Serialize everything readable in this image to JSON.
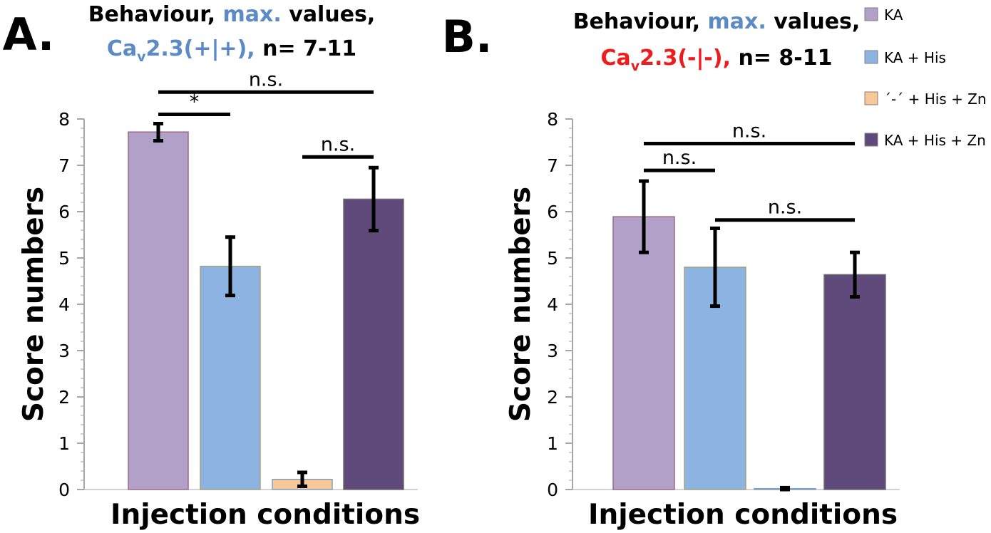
{
  "colors": {
    "ka": "#b1a0c8",
    "ka_his": "#8db3e2",
    "ctrl_his_zn": "#fac896",
    "ka_his_zn": "#604a7b",
    "title_blue": "#5b8ac6",
    "title_red": "#ee1c1c",
    "text": "#000000",
    "axis": "#a6a6a6"
  },
  "legend": {
    "items": [
      {
        "label": "KA",
        "color_key": "ka"
      },
      {
        "label": "KA + His",
        "color_key": "ka_his"
      },
      {
        "label": "´-´ + His + Zn",
        "color_key": "ctrl_his_zn"
      },
      {
        "label": "KA + His + Zn",
        "color_key": "ka_his_zn"
      }
    ]
  },
  "chart_data": [
    {
      "type": "bar",
      "panel_label": "A.",
      "title_parts": {
        "line1_a": "Behaviour, ",
        "line1_b": "max.",
        "line1_c": " values,",
        "line2_a": "Ca",
        "line2_sub": "v",
        "line2_b": "2.3(+|+),",
        "line2_c": " n= 7-11"
      },
      "genotype_color": "title_blue",
      "xlabel": "Injection conditions",
      "ylabel": "Score numbers",
      "ylim": [
        0,
        8
      ],
      "yticks": [
        "0",
        "1",
        "2",
        "3",
        "4",
        "5",
        "6",
        "7",
        "8"
      ],
      "series": [
        {
          "name": "KA",
          "value": 7.72,
          "err_low": 7.53,
          "err_high": 7.9,
          "color_key": "ka"
        },
        {
          "name": "KA + His",
          "value": 4.82,
          "err_low": 4.19,
          "err_high": 5.45,
          "color_key": "ka_his"
        },
        {
          "name": "´-´ + His + Zn",
          "value": 0.22,
          "err_low": 0.07,
          "err_high": 0.37,
          "color_key": "ctrl_his_zn"
        },
        {
          "name": "KA + His + Zn",
          "value": 6.27,
          "err_low": 5.59,
          "err_high": 6.95,
          "color_key": "ka_his_zn"
        }
      ],
      "significance": [
        {
          "from": 1,
          "to": 2,
          "label": "*",
          "y": 8.1
        },
        {
          "from": 1,
          "to": 4,
          "label": "n.s.",
          "y": 8.58
        },
        {
          "from": 3,
          "to": 4,
          "label": "n.s.",
          "y": 7.18
        }
      ]
    },
    {
      "type": "bar",
      "panel_label": "B.",
      "title_parts": {
        "line1_a": "Behaviour, ",
        "line1_b": "max.",
        "line1_c": " values,",
        "line2_a": "Ca",
        "line2_sub": "v",
        "line2_b": "2.3(-|-),",
        "line2_c": " n= 8-11"
      },
      "genotype_color": "title_red",
      "xlabel": "Injection conditions",
      "ylabel": "Score numbers",
      "ylim": [
        0,
        8
      ],
      "yticks": [
        "0",
        "1",
        "2",
        "3",
        "4",
        "5",
        "6",
        "7",
        "8"
      ],
      "series": [
        {
          "name": "KA",
          "value": 5.89,
          "err_low": 5.12,
          "err_high": 6.66,
          "color_key": "ka"
        },
        {
          "name": "KA + His",
          "value": 4.8,
          "err_low": 3.96,
          "err_high": 5.64,
          "color_key": "ka_his"
        },
        {
          "name": "´-´ + His + Zn",
          "value": 0.02,
          "err_low": 0.0,
          "err_high": 0.04,
          "color_key": "ctrl_his_zn"
        },
        {
          "name": "KA + His + Zn",
          "value": 4.64,
          "err_low": 4.16,
          "err_high": 5.12,
          "color_key": "ka_his_zn"
        }
      ],
      "significance": [
        {
          "from": 1,
          "to": 4,
          "label": "n.s.",
          "y": 7.47
        },
        {
          "from": 1,
          "to": 2,
          "label": "n.s.",
          "y": 6.89
        },
        {
          "from": 2,
          "to": 4,
          "label": "n.s.",
          "y": 5.82
        }
      ]
    }
  ]
}
